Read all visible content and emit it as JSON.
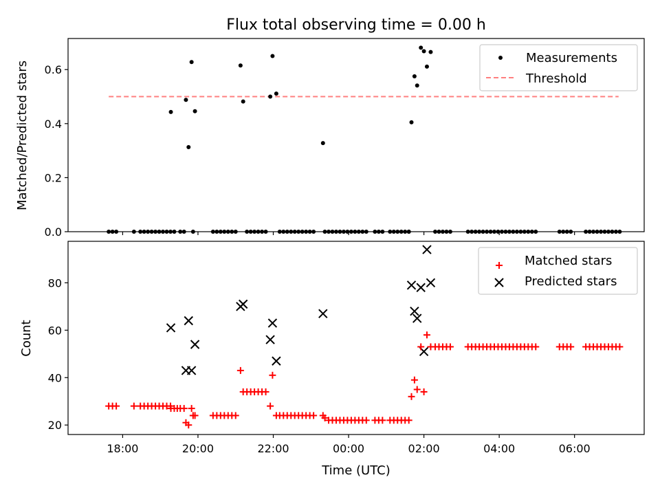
{
  "chart_data": [
    {
      "type": "scatter",
      "title": "Flux total observing time = 0.00 h",
      "ylabel": "Matched/Predicted stars",
      "xlabel": "",
      "ylim": [
        0,
        0.715
      ],
      "yticks": [
        0.0,
        0.2,
        0.4,
        0.6
      ],
      "yticklabels": [
        "0.0",
        "0.2",
        "0.4",
        "0.6"
      ],
      "legend_position": "top-right",
      "series": [
        {
          "name": "Measurements",
          "marker": "dot",
          "color": "#000000",
          "x": [
            17.63,
            17.73,
            17.83,
            18.3,
            18.47,
            18.57,
            18.67,
            18.77,
            18.87,
            18.97,
            19.07,
            19.17,
            19.27,
            19.37,
            19.53,
            19.63,
            19.87,
            20.4,
            20.5,
            20.6,
            20.7,
            20.8,
            20.9,
            21.0,
            21.3,
            21.4,
            21.5,
            21.6,
            21.7,
            21.8,
            22.17,
            22.27,
            22.37,
            22.47,
            22.57,
            22.67,
            22.77,
            22.87,
            22.97,
            23.07,
            23.37,
            23.47,
            23.57,
            23.67,
            23.77,
            23.87,
            23.97,
            24.07,
            24.17,
            24.27,
            24.37,
            24.47,
            24.7,
            24.8,
            24.9,
            25.1,
            25.2,
            25.3,
            25.4,
            25.5,
            25.6,
            25.6,
            26.3,
            26.4,
            26.5,
            26.6,
            26.7,
            27.17,
            27.27,
            27.37,
            27.47,
            27.57,
            27.67,
            27.77,
            27.87,
            27.97,
            28.07,
            28.17,
            28.27,
            28.37,
            28.47,
            28.57,
            28.67,
            28.77,
            28.87,
            28.97,
            29.6,
            29.7,
            29.8,
            29.9,
            30.3,
            30.4,
            30.5,
            30.6,
            30.7,
            30.8,
            30.9,
            31.0,
            31.1,
            31.2,
            19.28,
            19.68,
            19.75,
            19.83,
            19.92,
            21.13,
            21.2,
            21.92,
            21.98,
            22.08,
            23.32,
            25.67,
            25.75,
            25.82,
            25.92,
            26.0,
            26.08,
            26.18
          ],
          "y": [
            0,
            0,
            0,
            0,
            0,
            0,
            0,
            0,
            0,
            0,
            0,
            0,
            0,
            0,
            0,
            0,
            0,
            0,
            0,
            0,
            0,
            0,
            0,
            0,
            0,
            0,
            0,
            0,
            0,
            0,
            0,
            0,
            0,
            0,
            0,
            0,
            0,
            0,
            0,
            0,
            0,
            0,
            0,
            0,
            0,
            0,
            0,
            0,
            0,
            0,
            0,
            0,
            0,
            0,
            0,
            0,
            0,
            0,
            0,
            0,
            0,
            0,
            0,
            0,
            0,
            0,
            0,
            0,
            0,
            0,
            0,
            0,
            0,
            0,
            0,
            0,
            0,
            0,
            0,
            0,
            0,
            0,
            0,
            0,
            0,
            0,
            0,
            0,
            0,
            0,
            0,
            0,
            0,
            0,
            0,
            0,
            0,
            0,
            0,
            0,
            0.443,
            0.488,
            0.313,
            0.628,
            0.446,
            0.615,
            0.482,
            0.5,
            0.65,
            0.511,
            0.328,
            0.405,
            0.575,
            0.541,
            0.681,
            0.668,
            0.611,
            0.665
          ]
        },
        {
          "name": "Threshold",
          "style": "dashed",
          "color": "#ff7f7f",
          "x": [
            17.63,
            31.17
          ],
          "y": [
            0.5,
            0.5
          ]
        }
      ]
    },
    {
      "type": "scatter",
      "title": "",
      "xlabel": "Time (UTC)",
      "ylabel": "Count",
      "xlim": [
        16.55,
        31.85
      ],
      "ylim": [
        16,
        97.5
      ],
      "yticks": [
        20,
        40,
        60,
        80
      ],
      "yticklabels": [
        "20",
        "40",
        "60",
        "80"
      ],
      "xticks": [
        18,
        20,
        22,
        24,
        26,
        28,
        30
      ],
      "xticklabels": [
        "18:00",
        "20:00",
        "22:00",
        "00:00",
        "02:00",
        "04:00",
        "06:00"
      ],
      "legend_position": "top-right",
      "series": [
        {
          "name": "Matched stars",
          "marker": "plus",
          "color": "#ff0000",
          "x": [
            17.63,
            17.73,
            17.83,
            18.3,
            18.47,
            18.57,
            18.67,
            18.77,
            18.87,
            18.97,
            19.07,
            19.17,
            19.27,
            19.37,
            19.53,
            19.63,
            19.87,
            20.4,
            20.5,
            20.6,
            20.7,
            20.8,
            20.9,
            21.0,
            21.3,
            21.4,
            21.5,
            21.6,
            21.7,
            21.8,
            22.17,
            22.27,
            22.37,
            22.47,
            22.57,
            22.67,
            22.77,
            22.87,
            22.97,
            23.07,
            23.37,
            23.47,
            23.57,
            23.67,
            23.77,
            23.87,
            23.97,
            24.07,
            24.17,
            24.27,
            24.37,
            24.47,
            24.7,
            24.8,
            24.9,
            25.1,
            25.2,
            25.3,
            25.4,
            25.5,
            25.6,
            26.3,
            26.4,
            26.5,
            26.6,
            26.7,
            27.17,
            27.27,
            27.37,
            27.47,
            27.57,
            27.67,
            27.77,
            27.87,
            27.97,
            28.07,
            28.17,
            28.27,
            28.37,
            28.47,
            28.57,
            28.67,
            28.77,
            28.87,
            28.97,
            29.6,
            29.7,
            29.8,
            29.9,
            30.3,
            30.4,
            30.5,
            30.6,
            30.7,
            30.8,
            30.9,
            31.0,
            31.1,
            31.2,
            19.28,
            19.45,
            19.68,
            19.75,
            19.83,
            19.92,
            21.13,
            21.2,
            21.92,
            21.98,
            22.08,
            23.32,
            25.67,
            25.75,
            25.82,
            25.92,
            26.0,
            26.08,
            26.18
          ],
          "y": [
            28,
            28,
            28,
            28,
            28,
            28,
            28,
            28,
            28,
            28,
            28,
            28,
            28,
            27,
            27,
            27,
            24,
            24,
            24,
            24,
            24,
            24,
            24,
            24,
            34,
            34,
            34,
            34,
            34,
            34,
            24,
            24,
            24,
            24,
            24,
            24,
            24,
            24,
            24,
            24,
            23,
            22,
            22,
            22,
            22,
            22,
            22,
            22,
            22,
            22,
            22,
            22,
            22,
            22,
            22,
            22,
            22,
            22,
            22,
            22,
            22,
            53,
            53,
            53,
            53,
            53,
            53,
            53,
            53,
            53,
            53,
            53,
            53,
            53,
            53,
            53,
            53,
            53,
            53,
            53,
            53,
            53,
            53,
            53,
            53,
            53,
            53,
            53,
            53,
            53,
            53,
            53,
            53,
            53,
            53,
            53,
            53,
            53,
            53,
            27,
            27,
            21,
            20,
            27,
            24,
            43,
            34,
            28,
            41,
            24,
            24,
            32,
            39,
            35,
            53,
            34,
            58,
            53
          ]
        },
        {
          "name": "Predicted stars",
          "marker": "x",
          "color": "#000000",
          "x": [
            19.28,
            19.68,
            19.75,
            19.83,
            19.92,
            21.13,
            21.2,
            21.92,
            21.98,
            22.08,
            23.32,
            25.67,
            25.75,
            25.82,
            25.92,
            26.0,
            26.08,
            26.18
          ],
          "y": [
            61,
            43,
            64,
            43,
            54,
            70,
            71,
            56,
            63,
            47,
            67,
            79,
            68,
            65,
            78,
            51,
            94,
            80
          ]
        }
      ]
    }
  ]
}
